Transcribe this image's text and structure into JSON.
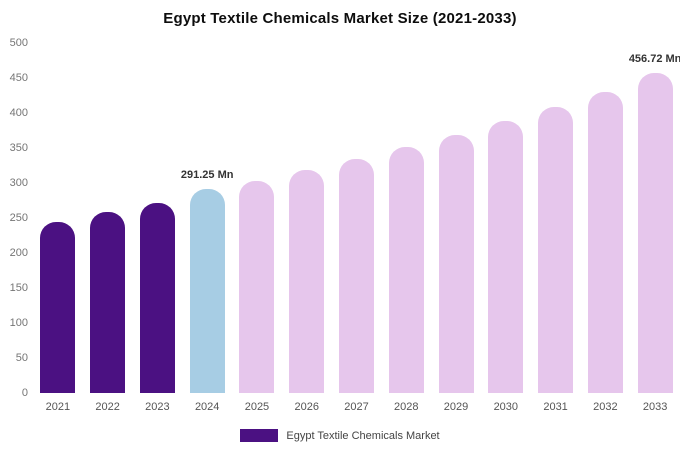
{
  "title": "Egypt Textile Chemicals Market Size (2021-2033)",
  "legend": {
    "label": "Egypt Textile Chemicals Market",
    "swatch_color": "#4b1182"
  },
  "colors": {
    "dark_purple": "#4b1182",
    "highlight_blue": "#a7cde4",
    "light_pink": "#e6c6ec",
    "axis_text": "#757575",
    "label_text": "#333333"
  },
  "chart_data": {
    "type": "bar",
    "title": "Egypt Textile Chemicals Market Size (2021-2033)",
    "xlabel": "",
    "ylabel": "",
    "categories": [
      "2021",
      "2022",
      "2023",
      "2024",
      "2025",
      "2026",
      "2027",
      "2028",
      "2029",
      "2030",
      "2031",
      "2032",
      "2033"
    ],
    "values": [
      245,
      258,
      272,
      291.25,
      303,
      318,
      334,
      351,
      369,
      388,
      408,
      430,
      456.72
    ],
    "bar_colors": [
      "#4b1182",
      "#4b1182",
      "#4b1182",
      "#a7cde4",
      "#e6c6ec",
      "#e6c6ec",
      "#e6c6ec",
      "#e6c6ec",
      "#e6c6ec",
      "#e6c6ec",
      "#e6c6ec",
      "#e6c6ec",
      "#e6c6ec"
    ],
    "value_labels": {
      "2024": "291.25 Mn",
      "2033": "456.72 Mn"
    },
    "ylim": [
      0,
      500
    ],
    "ytick_step": 50,
    "yticks": [
      0,
      50,
      100,
      150,
      200,
      250,
      300,
      350,
      400,
      450,
      500
    ],
    "grid": false,
    "legend_position": "bottom",
    "unit": "Mn"
  }
}
